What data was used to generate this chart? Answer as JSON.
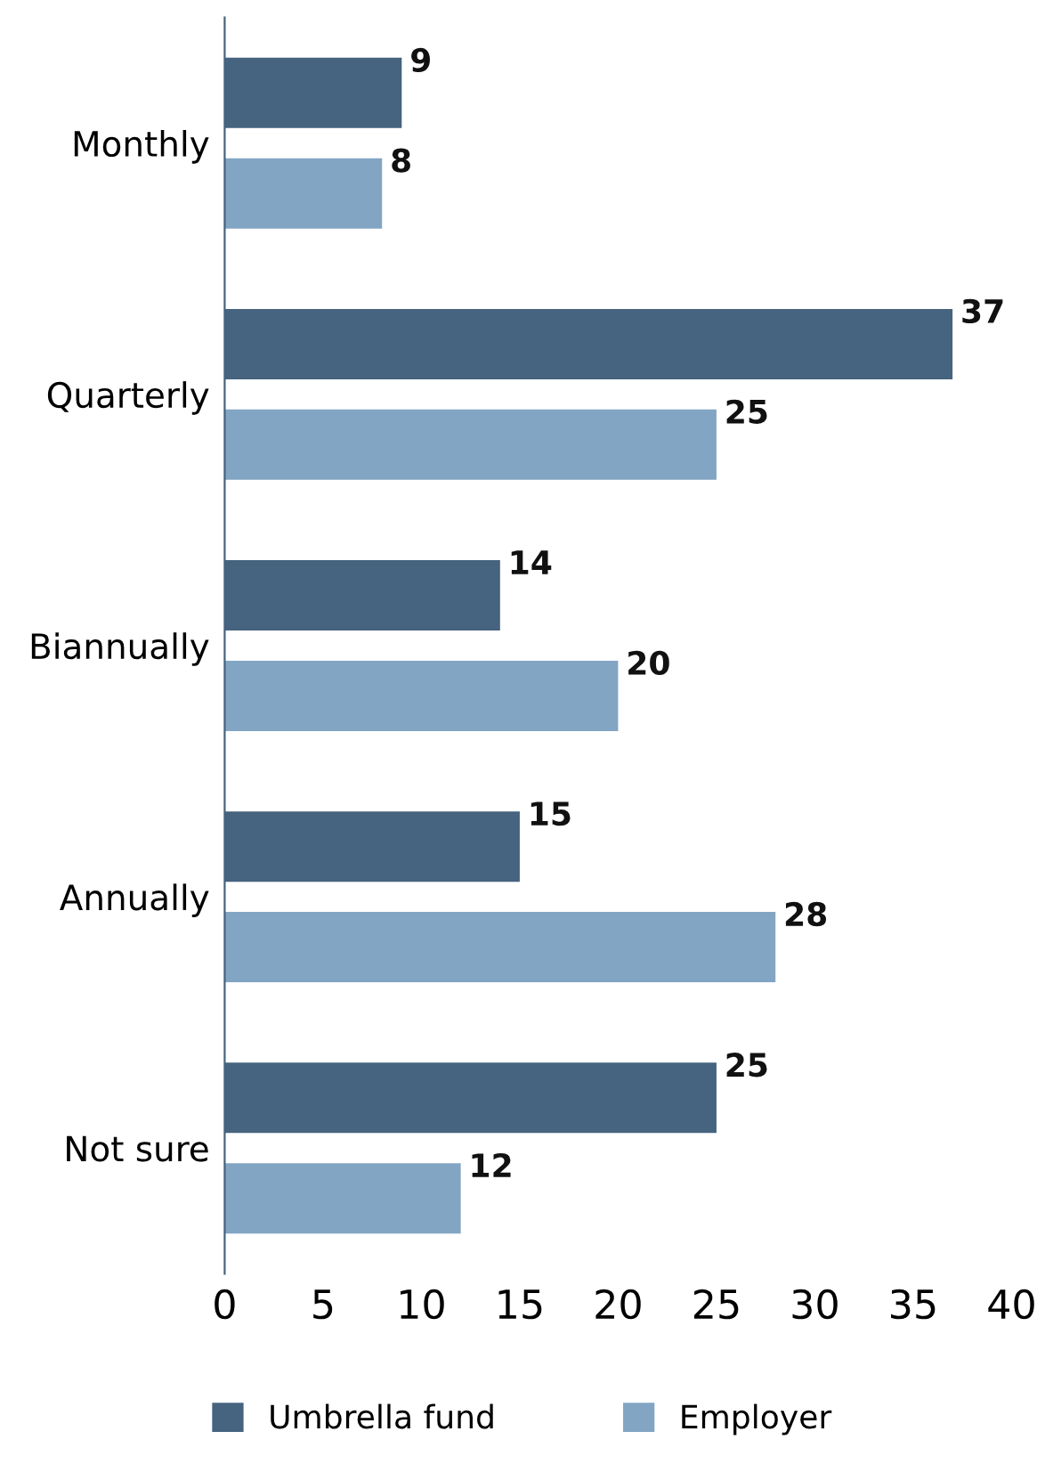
{
  "chart_data": {
    "type": "bar",
    "orientation": "horizontal",
    "categories": [
      "Monthly",
      "Quarterly",
      "Biannually",
      "Annually",
      "Not sure"
    ],
    "series": [
      {
        "name": "Umbrella fund",
        "color": "#46637f",
        "values": [
          9,
          37,
          14,
          15,
          25
        ]
      },
      {
        "name": "Employer",
        "color": "#82a5c4",
        "values": [
          8,
          25,
          20,
          28,
          12
        ]
      }
    ],
    "xlim": [
      0,
      40
    ],
    "xticks": [
      0,
      5,
      10,
      15,
      20,
      25,
      30,
      35,
      40
    ],
    "data_labels": true,
    "legend": "bottom",
    "grid": false
  }
}
